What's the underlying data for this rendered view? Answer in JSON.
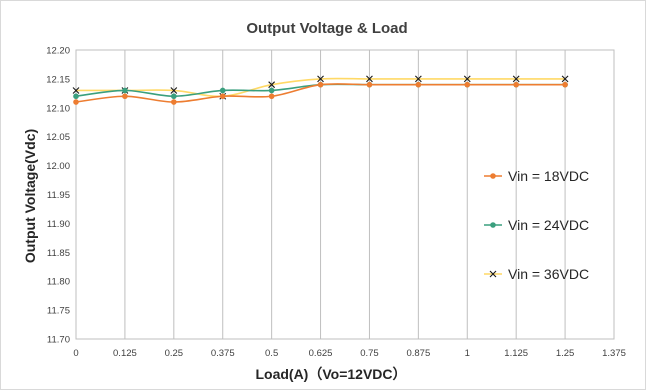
{
  "chart_data": {
    "type": "line",
    "title": "Output Voltage & Load",
    "xlabel": "Load(A)（Vo=12VDC）",
    "ylabel": "Output Voltage(Vdc)",
    "xlim": [
      0,
      1.375
    ],
    "ylim": [
      11.7,
      12.2
    ],
    "x_ticks": [
      "0",
      "0.125",
      "0.25",
      "0.375",
      "0.5",
      "0.625",
      "0.75",
      "0.875",
      "1",
      "1.125",
      "1.25",
      "1.375"
    ],
    "y_ticks": [
      "11.70",
      "11.75",
      "11.80",
      "11.85",
      "11.90",
      "11.95",
      "12.00",
      "12.05",
      "12.10",
      "12.15",
      "12.20"
    ],
    "grid": "vertical",
    "legend": "right",
    "x": [
      0,
      0.125,
      0.25,
      0.375,
      0.5,
      0.625,
      0.75,
      0.875,
      1,
      1.125,
      1.25
    ],
    "series": [
      {
        "name": "Vin = 18VDC",
        "color": "#ED7D31",
        "marker": "dot",
        "values": [
          12.11,
          12.12,
          12.11,
          12.12,
          12.12,
          12.14,
          12.14,
          12.14,
          12.14,
          12.14,
          12.14
        ]
      },
      {
        "name": "Vin = 24VDC",
        "color": "#3A9F7E",
        "marker": "dot",
        "values": [
          12.12,
          12.13,
          12.12,
          12.13,
          12.13,
          12.14,
          12.14,
          12.14,
          12.14,
          12.14,
          12.14
        ]
      },
      {
        "name": "Vin = 36VDC",
        "color": "#FFD966",
        "marker": "x",
        "values": [
          12.13,
          12.13,
          12.13,
          12.12,
          12.14,
          12.15,
          12.15,
          12.15,
          12.15,
          12.15,
          12.15
        ]
      }
    ]
  }
}
